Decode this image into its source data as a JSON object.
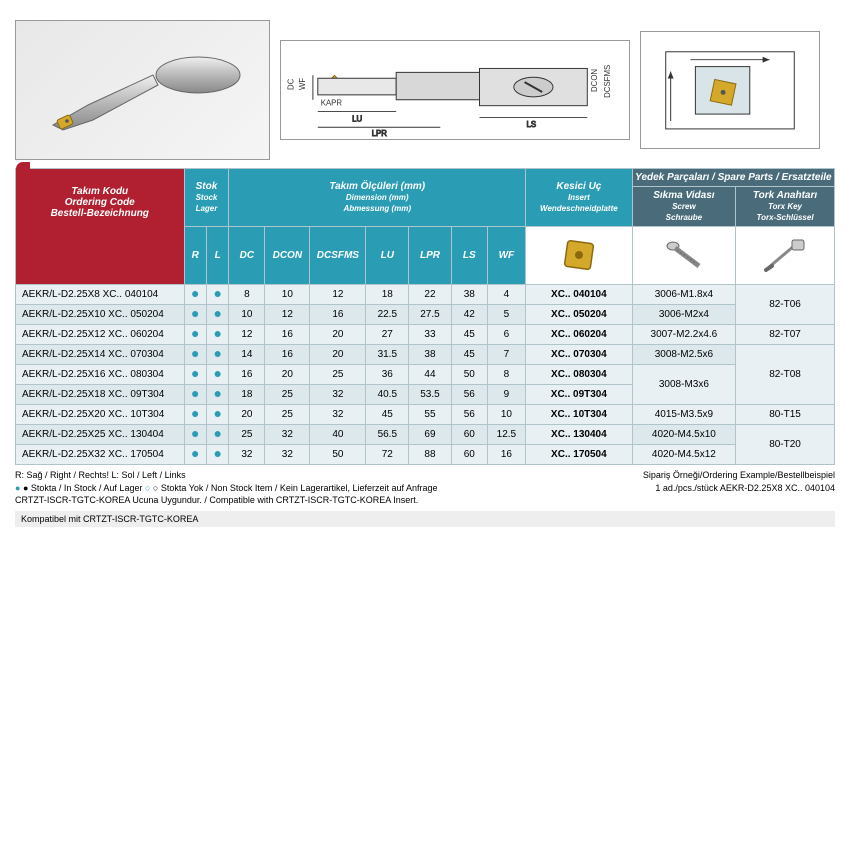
{
  "headers": {
    "orderingCode": {
      "l1": "Takım Kodu",
      "l2": "Ordering Code",
      "l3": "Bestell-Bezeichnung"
    },
    "stock": {
      "l1": "Stok",
      "l2": "Stock",
      "l3": "Lager"
    },
    "dimensions": {
      "l1": "Takım Ölçüleri (mm)",
      "l2": "Dimension (mm)",
      "l3": "Abmessung (mm)"
    },
    "insert": {
      "l1": "Kesici Uç",
      "l2": "Insert",
      "l3": "Wendeschneidplatte"
    },
    "spareParts": "Yedek Parçaları / Spare Parts / Ersatzteile",
    "screw": {
      "l1": "Sıkma Vidası",
      "l2": "Screw",
      "l3": "Schraube"
    },
    "torx": {
      "l1": "Tork Anahtarı",
      "l2": "Torx Key",
      "l3": "Torx-Schlüssel"
    }
  },
  "cols": {
    "r": "R",
    "l": "L",
    "dc": "DC",
    "dcon": "DCON",
    "dcsfms": "DCSFMS",
    "lu": "LU",
    "lpr": "LPR",
    "ls": "LS",
    "wf": "WF"
  },
  "rows": [
    {
      "code": "AEKR/L-D2.25X8  XC.. 040104",
      "dc": "8",
      "dcon": "10",
      "dcsfms": "12",
      "lu": "18",
      "lpr": "22",
      "ls": "38",
      "wf": "4",
      "insert": "XC.. 040104",
      "screw": "3006-M1.8x4"
    },
    {
      "code": "AEKR/L-D2.25X10 XC.. 050204",
      "dc": "10",
      "dcon": "12",
      "dcsfms": "16",
      "lu": "22.5",
      "lpr": "27.5",
      "ls": "42",
      "wf": "5",
      "insert": "XC.. 050204",
      "screw": "3006-M2x4"
    },
    {
      "code": "AEKR/L-D2.25X12 XC.. 060204",
      "dc": "12",
      "dcon": "16",
      "dcsfms": "20",
      "lu": "27",
      "lpr": "33",
      "ls": "45",
      "wf": "6",
      "insert": "XC.. 060204",
      "screw": "3007-M2.2x4.6"
    },
    {
      "code": "AEKR/L-D2.25X14 XC.. 070304",
      "dc": "14",
      "dcon": "16",
      "dcsfms": "20",
      "lu": "31.5",
      "lpr": "38",
      "ls": "45",
      "wf": "7",
      "insert": "XC.. 070304",
      "screw": "3008-M2.5x6"
    },
    {
      "code": "AEKR/L-D2.25X16 XC.. 080304",
      "dc": "16",
      "dcon": "20",
      "dcsfms": "25",
      "lu": "36",
      "lpr": "44",
      "ls": "50",
      "wf": "8",
      "insert": "XC.. 080304"
    },
    {
      "code": "AEKR/L-D2.25X18 XC.. 09T304",
      "dc": "18",
      "dcon": "25",
      "dcsfms": "32",
      "lu": "40.5",
      "lpr": "53.5",
      "ls": "56",
      "wf": "9",
      "insert": "XC.. 09T304"
    },
    {
      "code": "AEKR/L-D2.25X20 XC.. 10T304",
      "dc": "20",
      "dcon": "25",
      "dcsfms": "32",
      "lu": "45",
      "lpr": "55",
      "ls": "56",
      "wf": "10",
      "insert": "XC.. 10T304",
      "screw": "4015-M3.5x9"
    },
    {
      "code": "AEKR/L-D2.25X25 XC.. 130404",
      "dc": "25",
      "dcon": "32",
      "dcsfms": "40",
      "lu": "56.5",
      "lpr": "69",
      "ls": "60",
      "wf": "12.5",
      "insert": "XC.. 130404",
      "screw": "4020-M4.5x10"
    },
    {
      "code": "AEKR/L-D2.25X32 XC.. 170504",
      "dc": "32",
      "dcon": "32",
      "dcsfms": "50",
      "lu": "72",
      "lpr": "88",
      "ls": "60",
      "wf": "16",
      "insert": "XC.. 170504",
      "screw": "4020-M4.5x12"
    }
  ],
  "screwMerge": "3008-M3x6",
  "torxGroups": [
    "82-T06",
    "82-T07",
    "82-T08",
    "80-T15",
    "80-T20"
  ],
  "dims": {
    "dc": "DC",
    "wf": "WF",
    "kapr": "KAPR",
    "lu": "LU",
    "lpr": "LPR",
    "ls": "LS",
    "dcon": "DCON",
    "dcsfms": "DCSFMS"
  },
  "footer": {
    "line1": "R: Sağ / Right / Rechts!   L: Sol / Left / Links",
    "line2a": "● Stokta / In Stock / Auf Lager  ",
    "line2b": "○ Stokta Yok / Non Stock Item / Kein Lagerartikel, Lieferzeit auf Anfrage",
    "line3": "CRTZT-ISCR-TGTC-KOREA Ucuna Uygundur. / Compatible with CRTZT-ISCR-TGTC-KOREA Insert.",
    "right1": "Sipariş Örneği/Ordering Example/Bestellbeispiel",
    "right2": "1 ad./pcs./stück  AEKR-D2.25X8 XC.. 040104",
    "kompat": "Kompatibel mit CRTZT-ISCR-TGTC-KOREA"
  },
  "colors": {
    "red": "#b02030",
    "teal": "#2a9db5",
    "dark": "#4a6c7a",
    "rowOdd": "#e8f0f3",
    "rowEven": "#dde8ec",
    "border": "#b0c4cc"
  }
}
